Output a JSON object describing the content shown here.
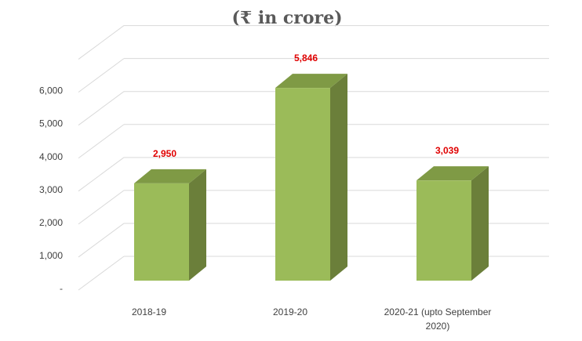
{
  "chart_data": {
    "type": "bar",
    "title": "(₹ in crore)",
    "categories": [
      "2018-19",
      "2019-20",
      "2020-21 (upto September 2020)"
    ],
    "category_lines": [
      [
        "2018-19"
      ],
      [
        "2019-20"
      ],
      [
        "2020-21 (upto September",
        "2020)"
      ]
    ],
    "values": [
      2950,
      5846,
      3039
    ],
    "data_labels": [
      "2,950",
      "5,846",
      "3,039"
    ],
    "y_ticks": [
      0,
      1000,
      2000,
      3000,
      4000,
      5000,
      6000
    ],
    "y_tick_labels": [
      "-",
      "1,000",
      "2,000",
      "3,000",
      "4,000",
      "5,000",
      "6,000"
    ],
    "ylim": [
      0,
      7000
    ],
    "grid": true,
    "legend": "none",
    "style": "3d-column",
    "colors": {
      "bar_front": "#9bbb59",
      "bar_side": "#6b7f3a",
      "bar_top": "#7f9a45",
      "data_label": "#e00000",
      "grid": "#d9d9d9"
    }
  }
}
